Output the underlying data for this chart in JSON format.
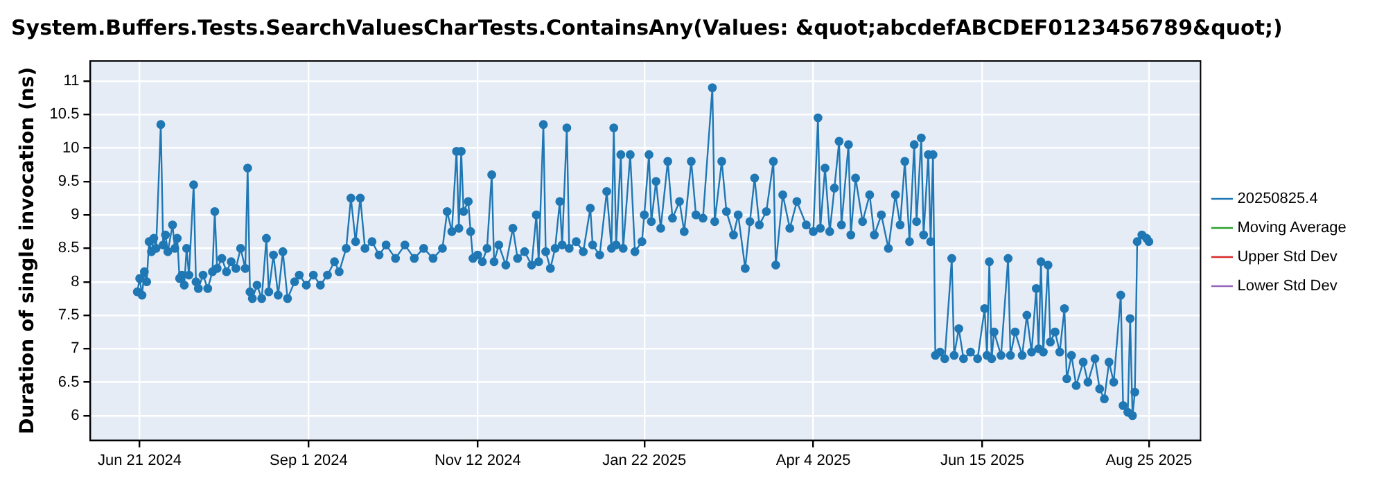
{
  "chart_data": {
    "type": "line",
    "title": "System.Buffers.Tests.SearchValuesCharTests.ContainsAny(Values: &quot;abcdefABCDEF0123456789&quot;)",
    "ylabel": "Duration of single invocation (ns)",
    "x": [
      "2024-06-20",
      "2024-06-21",
      "2024-06-22",
      "2024-06-23",
      "2024-06-24",
      "2024-06-25",
      "2024-06-26",
      "2024-06-27",
      "2024-06-28",
      "2024-06-30",
      "2024-07-01",
      "2024-07-02",
      "2024-07-03",
      "2024-07-05",
      "2024-07-06",
      "2024-07-07",
      "2024-07-08",
      "2024-07-09",
      "2024-07-10",
      "2024-07-11",
      "2024-07-12",
      "2024-07-14",
      "2024-07-15",
      "2024-07-16",
      "2024-07-18",
      "2024-07-20",
      "2024-07-22",
      "2024-07-23",
      "2024-07-24",
      "2024-07-26",
      "2024-07-28",
      "2024-07-30",
      "2024-08-01",
      "2024-08-03",
      "2024-08-05",
      "2024-08-06",
      "2024-08-07",
      "2024-08-08",
      "2024-08-10",
      "2024-08-12",
      "2024-08-14",
      "2024-08-15",
      "2024-08-17",
      "2024-08-19",
      "2024-08-21",
      "2024-08-23",
      "2024-08-26",
      "2024-08-28",
      "2024-08-31",
      "2024-09-03",
      "2024-09-06",
      "2024-09-09",
      "2024-09-12",
      "2024-09-14",
      "2024-09-17",
      "2024-09-19",
      "2024-09-21",
      "2024-09-23",
      "2024-09-25",
      "2024-09-28",
      "2024-10-01",
      "2024-10-04",
      "2024-10-08",
      "2024-10-12",
      "2024-10-16",
      "2024-10-20",
      "2024-10-24",
      "2024-10-28",
      "2024-10-30",
      "2024-11-01",
      "2024-11-03",
      "2024-11-04",
      "2024-11-05",
      "2024-11-06",
      "2024-11-08",
      "2024-11-09",
      "2024-11-10",
      "2024-11-12",
      "2024-11-14",
      "2024-11-16",
      "2024-11-18",
      "2024-11-19",
      "2024-11-21",
      "2024-11-24",
      "2024-11-27",
      "2024-11-29",
      "2024-12-02",
      "2024-12-05",
      "2024-12-07",
      "2024-12-08",
      "2024-12-10",
      "2024-12-11",
      "2024-12-13",
      "2024-12-15",
      "2024-12-17",
      "2024-12-18",
      "2024-12-20",
      "2024-12-21",
      "2024-12-24",
      "2024-12-27",
      "2024-12-30",
      "2024-12-31",
      "2025-01-03",
      "2025-01-06",
      "2025-01-08",
      "2025-01-09",
      "2025-01-10",
      "2025-01-12",
      "2025-01-13",
      "2025-01-16",
      "2025-01-18",
      "2025-01-21",
      "2025-01-22",
      "2025-01-24",
      "2025-01-25",
      "2025-01-27",
      "2025-01-29",
      "2025-02-01",
      "2025-02-03",
      "2025-02-06",
      "2025-02-08",
      "2025-02-11",
      "2025-02-13",
      "2025-02-16",
      "2025-02-20",
      "2025-02-21",
      "2025-02-24",
      "2025-02-26",
      "2025-03-01",
      "2025-03-03",
      "2025-03-06",
      "2025-03-08",
      "2025-03-10",
      "2025-03-12",
      "2025-03-15",
      "2025-03-18",
      "2025-03-19",
      "2025-03-22",
      "2025-03-25",
      "2025-03-28",
      "2025-04-01",
      "2025-04-04",
      "2025-04-06",
      "2025-04-07",
      "2025-04-09",
      "2025-04-11",
      "2025-04-13",
      "2025-04-15",
      "2025-04-16",
      "2025-04-19",
      "2025-04-20",
      "2025-04-22",
      "2025-04-25",
      "2025-04-28",
      "2025-04-30",
      "2025-05-03",
      "2025-05-06",
      "2025-05-09",
      "2025-05-11",
      "2025-05-13",
      "2025-05-15",
      "2025-05-17",
      "2025-05-18",
      "2025-05-20",
      "2025-05-21",
      "2025-05-23",
      "2025-05-24",
      "2025-05-25",
      "2025-05-26",
      "2025-05-28",
      "2025-05-30",
      "2025-06-02",
      "2025-06-03",
      "2025-06-05",
      "2025-06-07",
      "2025-06-10",
      "2025-06-13",
      "2025-06-16",
      "2025-06-17",
      "2025-06-18",
      "2025-06-19",
      "2025-06-20",
      "2025-06-23",
      "2025-06-26",
      "2025-06-27",
      "2025-06-29",
      "2025-07-02",
      "2025-07-04",
      "2025-07-06",
      "2025-07-08",
      "2025-07-09",
      "2025-07-10",
      "2025-07-11",
      "2025-07-13",
      "2025-07-14",
      "2025-07-16",
      "2025-07-18",
      "2025-07-20",
      "2025-07-21",
      "2025-07-23",
      "2025-07-25",
      "2025-07-28",
      "2025-07-30",
      "2025-08-02",
      "2025-08-04",
      "2025-08-06",
      "2025-08-08",
      "2025-08-10",
      "2025-08-13",
      "2025-08-14",
      "2025-08-16",
      "2025-08-17",
      "2025-08-18",
      "2025-08-19",
      "2025-08-20",
      "2025-08-22",
      "2025-08-24",
      "2025-08-25"
    ],
    "series": [
      {
        "name": "20250825.4",
        "color": "#1f77b4",
        "values": [
          7.85,
          8.05,
          7.8,
          8.15,
          8.0,
          8.6,
          8.45,
          8.65,
          8.5,
          10.35,
          8.55,
          8.7,
          8.45,
          8.85,
          8.5,
          8.65,
          8.05,
          8.1,
          7.95,
          8.5,
          8.1,
          9.45,
          8.0,
          7.9,
          8.1,
          7.9,
          8.15,
          9.05,
          8.2,
          8.35,
          8.15,
          8.3,
          8.2,
          8.5,
          8.2,
          9.7,
          7.85,
          7.75,
          7.95,
          7.75,
          8.65,
          7.85,
          8.4,
          7.8,
          8.45,
          7.75,
          8.0,
          8.1,
          7.95,
          8.1,
          7.95,
          8.1,
          8.3,
          8.15,
          8.5,
          9.25,
          8.6,
          9.25,
          8.5,
          8.6,
          8.4,
          8.55,
          8.35,
          8.55,
          8.35,
          8.5,
          8.35,
          8.5,
          9.05,
          8.75,
          9.95,
          8.8,
          9.95,
          9.05,
          9.2,
          8.75,
          8.35,
          8.4,
          8.3,
          8.5,
          9.6,
          8.3,
          8.55,
          8.25,
          8.8,
          8.35,
          8.45,
          8.25,
          9.0,
          8.3,
          10.35,
          8.45,
          8.2,
          8.5,
          9.2,
          8.55,
          10.3,
          8.5,
          8.6,
          8.45,
          9.1,
          8.55,
          8.4,
          9.35,
          8.5,
          10.3,
          8.55,
          9.9,
          8.5,
          9.9,
          8.45,
          8.6,
          9.0,
          9.9,
          8.9,
          9.5,
          8.8,
          9.8,
          8.95,
          9.2,
          8.75,
          9.8,
          9.0,
          8.95,
          10.9,
          8.9,
          9.8,
          9.05,
          8.7,
          9.0,
          8.2,
          8.9,
          9.55,
          8.85,
          9.05,
          9.8,
          8.25,
          9.3,
          8.8,
          9.2,
          8.85,
          8.75,
          10.45,
          8.8,
          9.7,
          8.75,
          9.4,
          10.1,
          8.85,
          10.05,
          8.7,
          9.55,
          8.9,
          9.3,
          8.7,
          9.0,
          8.5,
          9.3,
          8.85,
          9.8,
          8.6,
          10.05,
          8.9,
          10.15,
          8.7,
          9.9,
          8.6,
          9.9,
          6.9,
          6.95,
          6.85,
          8.35,
          6.9,
          7.3,
          6.85,
          6.95,
          6.85,
          7.6,
          6.9,
          8.3,
          6.85,
          7.25,
          6.9,
          8.35,
          6.9,
          7.25,
          6.9,
          7.5,
          6.95,
          7.9,
          7.0,
          8.3,
          6.95,
          8.25,
          7.1,
          7.25,
          6.95,
          7.6,
          6.55,
          6.9,
          6.45,
          6.8,
          6.5,
          6.85,
          6.4,
          6.25,
          6.8,
          6.5,
          7.8,
          6.15,
          6.05,
          7.45,
          6.0,
          6.35,
          8.6,
          8.7,
          8.65,
          8.6
        ]
      },
      {
        "name": "Moving Average",
        "color": "#2ca02c",
        "values": [
          null,
          null,
          null,
          null,
          null,
          null,
          null,
          null,
          null,
          null,
          null,
          null,
          null,
          null,
          null,
          null,
          null,
          null,
          null,
          null,
          null,
          null,
          null,
          null,
          null,
          null,
          null,
          null,
          null,
          null,
          null,
          null,
          null,
          null,
          null,
          null,
          null,
          null,
          null,
          null,
          null,
          null,
          null,
          null,
          null,
          null,
          null,
          null,
          null,
          null,
          null,
          null,
          null,
          null,
          null,
          null,
          null,
          null,
          null,
          null,
          null,
          null,
          null,
          null,
          null,
          null,
          null,
          null,
          null,
          null,
          null,
          null,
          null,
          null,
          null,
          null,
          null,
          null,
          null,
          null,
          null,
          null,
          null,
          null,
          null,
          null,
          null,
          null,
          null,
          null,
          null,
          null,
          null,
          null,
          null,
          null,
          null,
          null,
          null,
          null,
          null,
          null,
          null,
          null,
          null,
          null,
          null,
          null,
          null,
          null,
          null,
          null,
          null,
          null,
          null,
          null,
          null,
          null,
          null,
          null,
          null,
          null,
          null,
          null,
          null,
          null,
          null,
          null,
          null,
          null,
          null,
          null,
          null,
          null,
          null,
          null,
          null,
          null,
          null,
          null,
          null,
          null,
          null,
          null,
          null,
          null,
          null,
          null,
          null,
          null,
          null,
          null,
          null,
          null,
          null,
          null,
          null,
          null,
          null,
          null,
          null,
          null,
          null,
          null,
          null,
          null,
          null,
          null,
          null,
          null,
          null,
          null,
          null,
          null,
          null,
          null,
          null,
          null,
          null,
          null,
          null,
          null,
          null,
          null,
          null,
          null,
          null,
          null,
          null,
          null,
          null,
          null,
          null,
          null,
          null,
          null,
          null,
          null,
          null,
          null,
          null,
          null,
          null,
          null,
          null,
          null,
          null,
          null,
          null,
          null,
          null,
          null,
          null,
          null,
          null,
          null,
          null,
          null
        ]
      },
      {
        "name": "Upper Std Dev",
        "color": "#d62728",
        "values": [
          null,
          null,
          null,
          null,
          null,
          null,
          null,
          null,
          null,
          null,
          null,
          null,
          null,
          null,
          null,
          null,
          null,
          null,
          null,
          null,
          null,
          null,
          null,
          null,
          null,
          null,
          null,
          null,
          null,
          null,
          null,
          null,
          null,
          null,
          null,
          null,
          null,
          null,
          null,
          null,
          null,
          null,
          null,
          null,
          null,
          null,
          null,
          null,
          null,
          null,
          null,
          null,
          null,
          null,
          null,
          null,
          null,
          null,
          null,
          null,
          null,
          null,
          null,
          null,
          null,
          null,
          null,
          null,
          null,
          null,
          null,
          null,
          null,
          null,
          null,
          null,
          null,
          null,
          null,
          null,
          null,
          null,
          null,
          null,
          null,
          null,
          null,
          null,
          null,
          null,
          null,
          null,
          null,
          null,
          null,
          null,
          null,
          null,
          null,
          null,
          null,
          null,
          null,
          null,
          null,
          null,
          null,
          null,
          null,
          null,
          null,
          null,
          null,
          null,
          null,
          null,
          null,
          null,
          null,
          null,
          null,
          null,
          null,
          null,
          null,
          null,
          null,
          null,
          null,
          null,
          null,
          null,
          null,
          null,
          null,
          null,
          null,
          null,
          null,
          null,
          null,
          null,
          null,
          null,
          null,
          null,
          null,
          null,
          null,
          null,
          null,
          null,
          null,
          null,
          null,
          null,
          null,
          null,
          null,
          null,
          null,
          null,
          null,
          null,
          null,
          null,
          null,
          null,
          null,
          null,
          null,
          null,
          null,
          null,
          null,
          null,
          null,
          null,
          null,
          null,
          null,
          null,
          null,
          null,
          null,
          null,
          null,
          null,
          null,
          null,
          null,
          null,
          null,
          null,
          null,
          null,
          null,
          null,
          null,
          null,
          null,
          null,
          null,
          null,
          null,
          null,
          null,
          null,
          null,
          null,
          null,
          null,
          null,
          null,
          null,
          null,
          null,
          null
        ]
      },
      {
        "name": "Lower Std Dev",
        "color": "#9467bd",
        "values": [
          null,
          null,
          null,
          null,
          null,
          null,
          null,
          null,
          null,
          null,
          null,
          null,
          null,
          null,
          null,
          null,
          null,
          null,
          null,
          null,
          null,
          null,
          null,
          null,
          null,
          null,
          null,
          null,
          null,
          null,
          null,
          null,
          null,
          null,
          null,
          null,
          null,
          null,
          null,
          null,
          null,
          null,
          null,
          null,
          null,
          null,
          null,
          null,
          null,
          null,
          null,
          null,
          null,
          null,
          null,
          null,
          null,
          null,
          null,
          null,
          null,
          null,
          null,
          null,
          null,
          null,
          null,
          null,
          null,
          null,
          null,
          null,
          null,
          null,
          null,
          null,
          null,
          null,
          null,
          null,
          null,
          null,
          null,
          null,
          null,
          null,
          null,
          null,
          null,
          null,
          null,
          null,
          null,
          null,
          null,
          null,
          null,
          null,
          null,
          null,
          null,
          null,
          null,
          null,
          null,
          null,
          null,
          null,
          null,
          null,
          null,
          null,
          null,
          null,
          null,
          null,
          null,
          null,
          null,
          null,
          null,
          null,
          null,
          null,
          null,
          null,
          null,
          null,
          null,
          null,
          null,
          null,
          null,
          null,
          null,
          null,
          null,
          null,
          null,
          null,
          null,
          null,
          null,
          null,
          null,
          null,
          null,
          null,
          null,
          null,
          null,
          null,
          null,
          null,
          null,
          null,
          null,
          null,
          null,
          null,
          null,
          null,
          null,
          null,
          null,
          null,
          null,
          null,
          null,
          null,
          null,
          null,
          null,
          null,
          null,
          null,
          null,
          null,
          null,
          null,
          null,
          null,
          null,
          null,
          null,
          null,
          null,
          null,
          null,
          null,
          null,
          null,
          null,
          null,
          null,
          null,
          null,
          null,
          null,
          null,
          null,
          null,
          null,
          null,
          null,
          null,
          null,
          null,
          null,
          null,
          null,
          null,
          null,
          null,
          null,
          null,
          null,
          null
        ]
      }
    ],
    "xlim": [
      "2024-05-31",
      "2025-09-16"
    ],
    "xticks": [
      {
        "value": "2024-06-21",
        "label": "Jun 21 2024"
      },
      {
        "value": "2024-09-01",
        "label": "Sep 1 2024"
      },
      {
        "value": "2024-11-12",
        "label": "Nov 12 2024"
      },
      {
        "value": "2025-01-22",
        "label": "Jan 22 2025"
      },
      {
        "value": "2025-04-04",
        "label": "Apr 4 2025"
      },
      {
        "value": "2025-06-15",
        "label": "Jun 15 2025"
      },
      {
        "value": "2025-08-25",
        "label": "Aug 25 2025"
      }
    ],
    "ylim": [
      5.63,
      11.3
    ],
    "yticks": [
      6,
      6.5,
      7,
      7.5,
      8,
      8.5,
      9,
      9.5,
      10,
      10.5,
      11
    ],
    "grid": true,
    "legend": "right",
    "marker": "circle",
    "line_style": "solid"
  }
}
